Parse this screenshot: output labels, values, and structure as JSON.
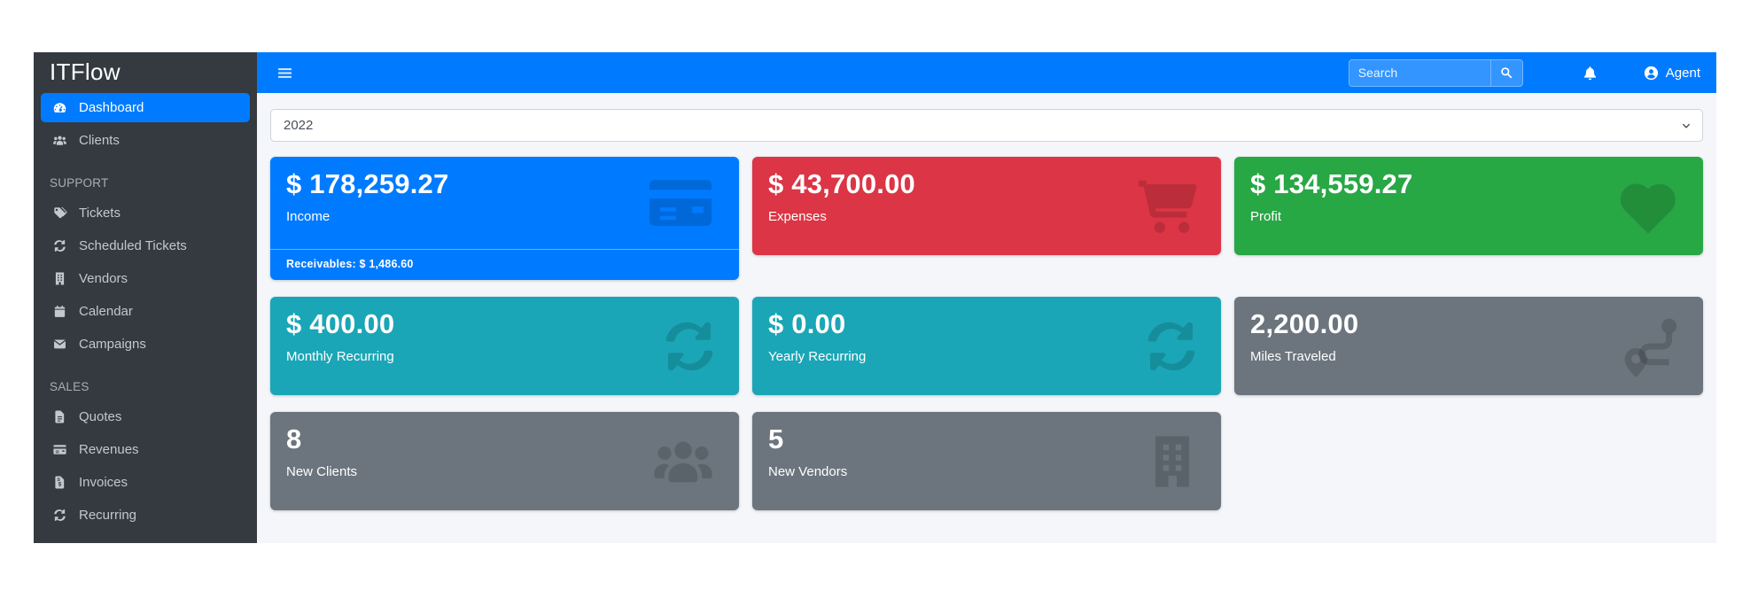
{
  "sidebar": {
    "brand": "ITFlow",
    "sections": [
      {
        "header": null,
        "items": [
          {
            "label": "Dashboard",
            "icon": "gauge-icon",
            "active": true
          },
          {
            "label": "Clients",
            "icon": "users-icon",
            "active": false
          }
        ]
      },
      {
        "header": "SUPPORT",
        "items": [
          {
            "label": "Tickets",
            "icon": "tags-icon",
            "active": false
          },
          {
            "label": "Scheduled Tickets",
            "icon": "sync-icon",
            "active": false
          },
          {
            "label": "Vendors",
            "icon": "building-icon",
            "active": false
          },
          {
            "label": "Calendar",
            "icon": "calendar-icon",
            "active": false
          },
          {
            "label": "Campaigns",
            "icon": "envelope-icon",
            "active": false
          }
        ]
      },
      {
        "header": "SALES",
        "items": [
          {
            "label": "Quotes",
            "icon": "file-icon",
            "active": false
          },
          {
            "label": "Revenues",
            "icon": "credit-card-icon",
            "active": false
          },
          {
            "label": "Invoices",
            "icon": "invoice-icon",
            "active": false
          },
          {
            "label": "Recurring",
            "icon": "sync-icon",
            "active": false
          }
        ]
      }
    ]
  },
  "navbar": {
    "search_placeholder": "Search",
    "user_label": "Agent"
  },
  "filters": {
    "year_selected": "2022"
  },
  "cards": [
    {
      "value": "$ 178,259.27",
      "label": "Income",
      "icon": "credit-card-icon",
      "color": "primary",
      "hex": "#007bff",
      "footer": "Receivables: $ 1,486.60"
    },
    {
      "value": "$ 43,700.00",
      "label": "Expenses",
      "icon": "shopping-cart-icon",
      "color": "danger",
      "hex": "#dc3545"
    },
    {
      "value": "$ 134,559.27",
      "label": "Profit",
      "icon": "heart-icon",
      "color": "success",
      "hex": "#28a745"
    },
    {
      "value": "$ 400.00",
      "label": "Monthly Recurring",
      "icon": "sync-icon",
      "color": "info",
      "hex": "#1aa6b7"
    },
    {
      "value": "$ 0.00",
      "label": "Yearly Recurring",
      "icon": "sync-icon",
      "color": "info",
      "hex": "#1aa6b7"
    },
    {
      "value": "2,200.00",
      "label": "Miles Traveled",
      "icon": "route-icon",
      "color": "secondary",
      "hex": "#6c757d"
    },
    {
      "value": "8",
      "label": "New Clients",
      "icon": "users-icon",
      "color": "secondary",
      "hex": "#6c757d"
    },
    {
      "value": "5",
      "label": "New Vendors",
      "icon": "building-icon",
      "color": "secondary",
      "hex": "#6c757d"
    }
  ],
  "colors": {
    "navbar_bg": "#007bff",
    "sidebar_bg": "#343a40",
    "sidebar_text": "#c2c7d0",
    "content_bg": "#f4f6f9",
    "active_item_bg": "#007bff"
  }
}
